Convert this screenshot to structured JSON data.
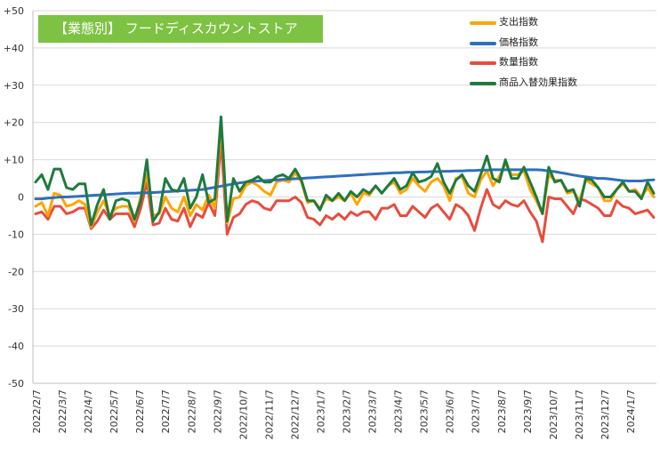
{
  "chart_data": {
    "type": "line",
    "title": "【業態別】 フードディスカウントストア",
    "xlabel": "",
    "ylabel": "",
    "ylim": [
      -50,
      50
    ],
    "y_ticks": [
      "+50",
      "+40",
      "+30",
      "+20",
      "+10",
      "0",
      "-10",
      "-20",
      "-30",
      "-40",
      "-50"
    ],
    "x_tick_labels": [
      "2022/2/7",
      "2022/3/7",
      "2022/4/7",
      "2022/5/7",
      "2022/6/7",
      "2022/7/7",
      "2022/8/7",
      "2022/9/7",
      "2022/10/7",
      "2022/11/7",
      "2022/12/7",
      "2023/1/7",
      "2023/2/7",
      "2023/3/7",
      "2023/4/7",
      "2023/5/7",
      "2023/6/7",
      "2023/7/7",
      "2023/8/7",
      "2023/9/7",
      "2023/10/7",
      "2023/11/7",
      "2023/12/7",
      "2024/1/7"
    ],
    "grid": "horizontal",
    "legend_position": "top-right",
    "series": [
      {
        "name": "支出指数",
        "color": "#ffa500",
        "values": [
          -2.5,
          -1.5,
          -5,
          1,
          0.5,
          -2.5,
          -2,
          -1,
          -2,
          -8,
          -4,
          -1,
          -5,
          -3,
          -2.5,
          -2.5,
          -6.5,
          0,
          6,
          -5,
          -4.5,
          0,
          -3,
          -4,
          0,
          -5,
          -2,
          -3.5,
          0.5,
          -3,
          19.5,
          -7,
          -0.5,
          0,
          3,
          4,
          3,
          1.5,
          0.5,
          4,
          4.5,
          4,
          6.5,
          4,
          -1.5,
          -1,
          -3,
          -0.5,
          -1,
          0,
          -1,
          1,
          -2,
          1,
          0.5,
          3,
          1,
          3,
          4,
          1,
          2,
          5,
          3,
          1.5,
          4,
          5,
          3,
          -1,
          5,
          5.5,
          1,
          0,
          4.5,
          7,
          3,
          5.5,
          9,
          6,
          6,
          7,
          2,
          -1,
          -4.5,
          6,
          4.5,
          4.5,
          1,
          1.5,
          -1,
          4.5,
          3.5,
          2.5,
          -1,
          -1,
          2,
          3.5,
          1.5,
          2,
          0,
          2.5,
          0
        ]
      },
      {
        "name": "価格指数",
        "color": "#2f6fbf",
        "values": [
          -0.5,
          -0.5,
          -0.3,
          -0.2,
          0,
          0,
          0.1,
          0.2,
          0.3,
          0.4,
          0.5,
          0.6,
          0.7,
          0.8,
          0.9,
          1,
          1,
          1.1,
          1.1,
          1.2,
          1.3,
          1.4,
          1.5,
          1.6,
          1.7,
          1.8,
          1.9,
          2,
          2.3,
          2.6,
          2.9,
          3.2,
          3.5,
          3.8,
          4,
          4.2,
          4.3,
          4.4,
          4.5,
          4.6,
          4.7,
          4.8,
          4.9,
          5,
          5.1,
          5.2,
          5.3,
          5.4,
          5.5,
          5.6,
          5.7,
          5.8,
          5.9,
          6,
          6.1,
          6.2,
          6.3,
          6.4,
          6.5,
          6.5,
          6.6,
          6.6,
          6.7,
          6.7,
          6.8,
          6.8,
          6.9,
          6.9,
          7,
          7,
          7.1,
          7.1,
          7.2,
          7.2,
          7.3,
          7.3,
          7.3,
          7.3,
          7.3,
          7.3,
          7.3,
          7.3,
          7.2,
          7,
          6.8,
          6.5,
          6.2,
          5.9,
          5.6,
          5.4,
          5.2,
          5,
          5,
          4.8,
          4.6,
          4.4,
          4.3,
          4.3,
          4.3,
          4.5,
          4.6
        ]
      },
      {
        "name": "数量指数",
        "color": "#e84c3d",
        "values": [
          -4.5,
          -4,
          -6,
          -2.5,
          -2.5,
          -4.5,
          -4,
          -3,
          -3,
          -8.5,
          -6.5,
          -3.5,
          -6,
          -4.5,
          -4.5,
          -4.5,
          -8,
          -3,
          4,
          -7.5,
          -7,
          -3,
          -6,
          -6.5,
          -3,
          -8,
          -4.5,
          -5.5,
          -1.5,
          -5,
          15,
          -10,
          -5.5,
          -4.5,
          -2,
          -1,
          -1.5,
          -3,
          -3.5,
          -1,
          -1,
          -1,
          0,
          -1.5,
          -5.5,
          -6,
          -7.5,
          -5,
          -6,
          -4.5,
          -6,
          -4,
          -5,
          -4,
          -4,
          -6,
          -3,
          -3,
          -2,
          -5,
          -5,
          -2.5,
          -4,
          -5.5,
          -3,
          -2,
          -4,
          -6,
          -2,
          -3,
          -5,
          -9,
          -3,
          2,
          -2,
          -3,
          -1,
          -2,
          -2.5,
          -1,
          -4,
          -6.5,
          -12,
          0,
          -0.5,
          -0.5,
          -2.5,
          -4.5,
          -0.5,
          -1,
          -2,
          -3,
          -5,
          -5,
          -1,
          -2.5,
          -3,
          -4.5,
          -4,
          -3.5,
          -5.5
        ]
      },
      {
        "name": "商品入替効果指数",
        "color": "#1e7b3e",
        "values": [
          4,
          6,
          2,
          7.5,
          7.5,
          2.5,
          2,
          3.5,
          3.5,
          -7.5,
          -2,
          2,
          -6,
          -1,
          -0.5,
          -1,
          -6,
          -1,
          10,
          -6.5,
          -4,
          5,
          2,
          1.5,
          5,
          -3,
          0,
          6,
          -1.5,
          -0.5,
          21.5,
          -6.5,
          5,
          1.5,
          4,
          4.5,
          5.5,
          4,
          4,
          5.5,
          6,
          5,
          7.5,
          4.5,
          -1,
          -1,
          -3.5,
          0.5,
          -1,
          1,
          -1,
          1.5,
          0,
          2,
          1,
          3,
          1,
          3,
          5,
          2,
          3,
          6.5,
          4,
          4.5,
          5.5,
          9,
          4,
          1,
          4.5,
          6,
          3,
          1.5,
          6,
          11,
          5,
          4,
          10,
          5,
          5,
          8,
          4,
          0,
          -4.5,
          8,
          4,
          4.5,
          1.5,
          2,
          -2.5,
          5,
          4.5,
          2.5,
          0,
          0,
          2,
          4,
          1.5,
          1.5,
          -0.5,
          4,
          1
        ]
      }
    ]
  }
}
